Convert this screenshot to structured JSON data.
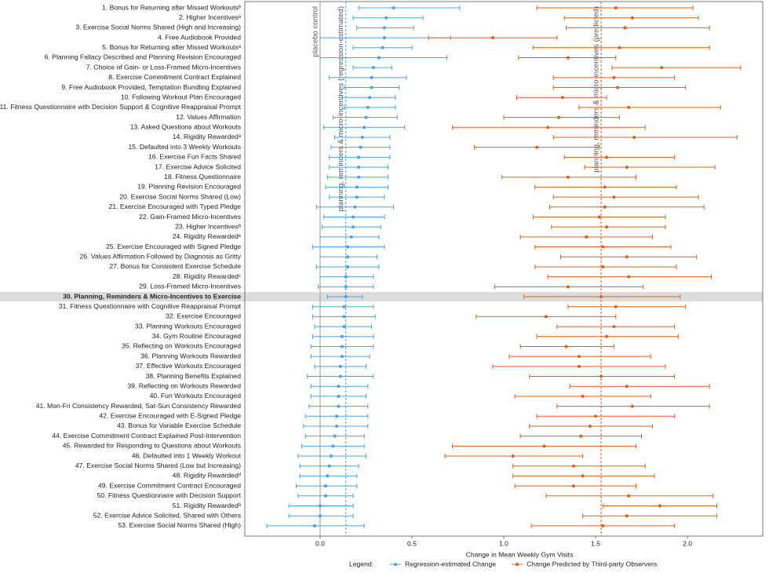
{
  "chart_data": {
    "type": "forest",
    "xlabel": "Change in Mean Weekly Gym Visits",
    "legend_title": "Legend:",
    "xlim": [
      -0.41,
      2.41
    ],
    "xticks": [
      {
        "value": 0,
        "label": "0.0"
      },
      0.5,
      {
        "value": 1,
        "label": "1.0"
      },
      1.5,
      {
        "value": 2,
        "label": "2.0"
      }
    ],
    "highlight_index": 29,
    "reference_lines": [
      {
        "value": 0,
        "label": "placebo control",
        "color": "#9a9a9a",
        "style": "solid"
      },
      {
        "value": 0.14,
        "label": "planning, reminders & micro-incentives (regression-estimated)",
        "color": "#4aa3df",
        "style": "dashed"
      },
      {
        "value": 1.53,
        "label": "planning, reminders & micro-incentives (predicted)",
        "color": "#d9621c",
        "style": "dashed"
      }
    ],
    "categories": [
      "1. Bonus for Returning after Missed Workoutsᵇ",
      "2. Higher Incentivesᵃ",
      "3. Exercise Social Norms Shared (High and Increasing)",
      "4. Free Audiobook Provided",
      "5. Bonus for Returning after Missed Workoutsᵃ",
      "6. Planning Fallacy Described and Planning Revision Encouraged",
      "7. Choice of Gain- or Loss-Framed Micro-Incentives",
      "8. Exercise Commitment Contract Explained",
      "9. Free Audiobook Provided, Temptation Bundling Explained",
      "10. Following Workout Plan Encouraged",
      "11. Fitness Questionnaire with Decision Support & Cognitive Reappraisal Prompt",
      "12. Values Affirmation",
      "13. Asked Questions about Workouts",
      "14. Rigidity Rewardedᵃ",
      "15. Defaulted into 3 Weekly Workouts",
      "16. Exercise Fun Facts Shared",
      "17. Exercise Advice Solicited",
      "18. Fitness Questionnaire",
      "19. Planning Revision Encouraged",
      "20. Exercise Social Norms Shared (Low)",
      "21. Exercise Encouraged with Typed Pledge",
      "22. Gain-Framed Micro-Incentives",
      "23. Higher Incentivesᵇ",
      "24. Rigidity Rewardedᵉ",
      "25. Exercise Encouraged with Signed Pledge",
      "26. Values Affirmation Followed by Diagnosis as Gritty",
      "27. Bonus for Consistent Exercise Schedule",
      "28. Rigidity Rewardedᶜ",
      "29. Loss-Framed Micro-Incentives",
      "30. Planning, Reminders & Micro-Incentives to Exercise",
      "31. Fitness Questionnaire with Cognitive Reappraisal Prompt",
      "32. Exercise Encouraged",
      "33. Planning Workouts Encouraged",
      "34. Gym Routine Encouraged",
      "35. Reflecting on Workouts Encouraged",
      "36. Planning Workouts Rewarded",
      "37. Effective Workouts Encouraged",
      "38. Planning Benefits Explained",
      "39. Reflecting on Workouts Rewarded",
      "40. Fun Workouts Encouraged",
      "41. Mon-Fri Consistency Rewarded, Sat-Sun Consistency Rewarded",
      "42. Exercise Encouraged with E-Signed Pledge",
      "43. Bonus for Variable Exercise Schedule",
      "44. Exercise Commitment Contract Explained Post-Intervention",
      "45. Rewarded for Responding to Questions about Workouts",
      "46. Defaulted into 1 Weekly Workout",
      "47. Exercise Social Norms Shared (Low but Increasing)",
      "48. Rigidity Rewardedᵈ",
      "49. Exercise Commitment Contract Encouraged",
      "50. Fitness Questionnaire with Decision Support",
      "51. Rigidity Rewardedᵇ",
      "52. Exercise Advice Solicited, Shared with Others",
      "53. Exercise Social Norms Shared (High)"
    ],
    "series": [
      {
        "name": "Regression-estimated Change",
        "color": "#4aa3df",
        "values": [
          0.4,
          0.36,
          0.35,
          0.35,
          0.34,
          0.32,
          0.29,
          0.28,
          0.28,
          0.27,
          0.26,
          0.25,
          0.24,
          0.23,
          0.22,
          0.21,
          0.21,
          0.21,
          0.2,
          0.2,
          0.19,
          0.18,
          0.18,
          0.17,
          0.15,
          0.15,
          0.15,
          0.14,
          0.14,
          0.14,
          0.13,
          0.13,
          0.13,
          0.12,
          0.12,
          0.12,
          0.11,
          0.11,
          0.1,
          0.1,
          0.1,
          0.09,
          0.09,
          0.08,
          0.07,
          0.06,
          0.05,
          0.04,
          0.03,
          0.03,
          0.0,
          0.0,
          -0.03
        ],
        "lower": [
          0.21,
          0.18,
          0.2,
          0.0,
          0.18,
          0.0,
          0.18,
          0.05,
          0.13,
          0.12,
          0.13,
          0.07,
          0.02,
          0.08,
          0.06,
          0.05,
          0.05,
          0.04,
          0.03,
          0.05,
          -0.02,
          0.02,
          0.01,
          0.0,
          -0.04,
          0.0,
          -0.02,
          0.0,
          -0.01,
          0.04,
          -0.04,
          -0.04,
          -0.03,
          -0.04,
          -0.05,
          -0.05,
          -0.03,
          -0.07,
          -0.05,
          -0.05,
          -0.06,
          -0.08,
          -0.09,
          -0.08,
          -0.1,
          -0.12,
          -0.11,
          -0.11,
          -0.13,
          -0.12,
          -0.17,
          -0.17,
          -0.29
        ],
        "upper": [
          0.76,
          0.56,
          0.51,
          0.71,
          0.5,
          0.69,
          0.39,
          0.47,
          0.43,
          0.41,
          0.41,
          0.42,
          0.46,
          0.38,
          0.38,
          0.38,
          0.37,
          0.37,
          0.37,
          0.35,
          0.4,
          0.35,
          0.33,
          0.32,
          0.35,
          0.31,
          0.32,
          0.29,
          0.29,
          0.23,
          0.29,
          0.3,
          0.28,
          0.29,
          0.29,
          0.27,
          0.25,
          0.29,
          0.26,
          0.25,
          0.26,
          0.26,
          0.26,
          0.24,
          0.24,
          0.25,
          0.21,
          0.2,
          0.2,
          0.18,
          0.18,
          0.18,
          0.24
        ]
      },
      {
        "name": "Change Predicted by Third-party Observers",
        "color": "#d9621c",
        "values": [
          1.61,
          1.7,
          1.66,
          0.94,
          1.63,
          1.35,
          1.86,
          1.6,
          1.62,
          1.32,
          1.68,
          1.3,
          1.24,
          1.71,
          1.18,
          1.56,
          1.67,
          1.35,
          1.55,
          1.6,
          1.55,
          1.52,
          1.56,
          1.45,
          1.54,
          1.67,
          1.54,
          1.68,
          1.35,
          1.53,
          1.61,
          1.23,
          1.6,
          1.56,
          1.34,
          1.41,
          1.41,
          1.53,
          1.67,
          1.43,
          1.7,
          1.5,
          1.47,
          1.42,
          1.22,
          1.05,
          1.38,
          1.43,
          1.38,
          1.68,
          1.85,
          1.67,
          1.54
        ],
        "lower": [
          1.18,
          1.33,
          1.34,
          0.59,
          1.16,
          1.08,
          1.59,
          1.27,
          1.27,
          1.07,
          1.41,
          1.0,
          0.72,
          1.27,
          0.84,
          1.33,
          1.44,
          0.99,
          1.17,
          1.27,
          1.25,
          1.16,
          1.26,
          1.09,
          1.17,
          1.31,
          1.17,
          1.24,
          0.95,
          1.11,
          1.35,
          0.85,
          1.29,
          1.18,
          1.09,
          1.03,
          0.94,
          1.14,
          1.36,
          1.06,
          1.29,
          1.18,
          1.14,
          1.09,
          0.72,
          0.68,
          1.05,
          1.05,
          1.06,
          1.23,
          1.54,
          1.43,
          1.15
        ],
        "upper": [
          2.03,
          2.06,
          2.12,
          1.29,
          2.12,
          1.61,
          2.29,
          1.93,
          1.99,
          1.56,
          2.18,
          1.63,
          1.77,
          2.27,
          1.52,
          1.93,
          2.15,
          1.72,
          1.94,
          2.06,
          2.09,
          1.88,
          1.88,
          1.81,
          1.91,
          2.05,
          1.94,
          2.13,
          1.76,
          1.96,
          1.99,
          1.61,
          1.93,
          1.95,
          1.6,
          1.8,
          1.88,
          1.93,
          2.12,
          1.8,
          2.12,
          1.93,
          1.81,
          1.75,
          1.72,
          1.43,
          1.77,
          1.82,
          1.72,
          2.14,
          2.16,
          2.16,
          1.93
        ]
      }
    ]
  }
}
